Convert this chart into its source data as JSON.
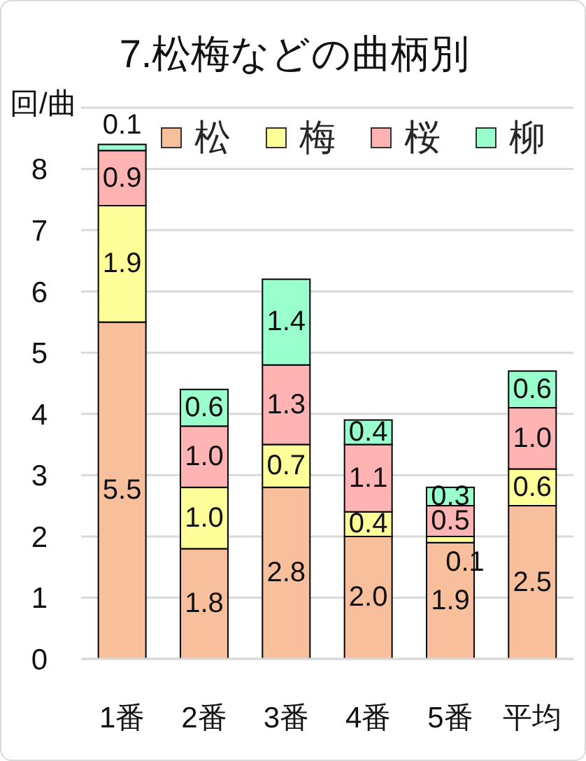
{
  "chart_data": {
    "type": "bar",
    "title": "7.松梅などの曲柄別",
    "ylabel": "回/曲",
    "categories": [
      "1番",
      "2番",
      "3番",
      "4番",
      "5番",
      "平均"
    ],
    "series": [
      {
        "name": "松",
        "color": "#f7bf9c",
        "values": [
          5.5,
          1.8,
          2.8,
          2.0,
          1.9,
          2.5
        ],
        "value_labels": [
          "5.5",
          "1.8",
          "2.8",
          "2.0",
          "1.9",
          "2.5"
        ]
      },
      {
        "name": "梅",
        "color": "#ffff99",
        "values": [
          1.9,
          1.0,
          0.7,
          0.4,
          0.1,
          0.6
        ],
        "value_labels": [
          "1.9",
          "1.0",
          "0.7",
          "0.4",
          "0.1",
          "0.6"
        ]
      },
      {
        "name": "桜",
        "color": "#ffb3b3",
        "values": [
          0.9,
          1.0,
          1.3,
          1.1,
          0.5,
          1.0
        ],
        "value_labels": [
          "0.9",
          "1.0",
          "1.3",
          "1.1",
          "0.5",
          "1.0"
        ]
      },
      {
        "name": "柳",
        "color": "#99ffcc",
        "values": [
          0.1,
          0.6,
          1.4,
          0.4,
          0.3,
          0.6
        ],
        "value_labels": [
          "0.1",
          "0.6",
          "1.4",
          "0.4",
          "0.3",
          "0.6"
        ]
      }
    ],
    "stacked": true,
    "ylim": [
      0,
      9
    ],
    "yticks": [
      0,
      1,
      2,
      3,
      4,
      5,
      6,
      7,
      8,
      {
        "value": 9,
        "label": null
      }
    ],
    "grid": "y",
    "legend": "top"
  }
}
